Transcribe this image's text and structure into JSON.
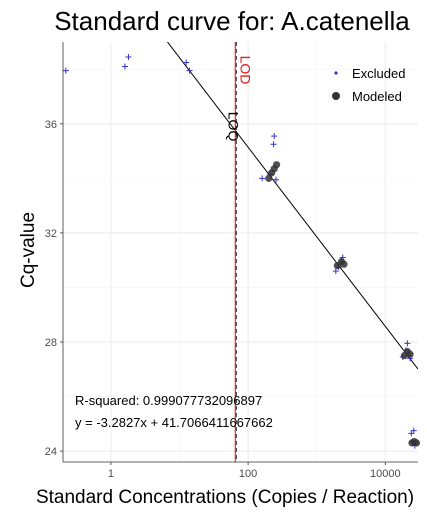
{
  "chart_data": {
    "type": "scatter",
    "title": "Standard curve for: A.catenella",
    "xlabel": "Standard Concentrations (Copies / Reaction)",
    "ylabel": "Cq-value",
    "x_scale": "log10",
    "xlim": [
      0.2,
      30000
    ],
    "ylim": [
      23.6,
      39.0
    ],
    "x_ticks": [
      {
        "value": 1,
        "label": "1"
      },
      {
        "value": 100,
        "label": "100"
      },
      {
        "value": 10000,
        "label": "10000"
      }
    ],
    "y_ticks": [
      {
        "value": 24,
        "label": "24"
      },
      {
        "value": 28,
        "label": "28"
      },
      {
        "value": 32,
        "label": "32"
      },
      {
        "value": 36,
        "label": "36"
      }
    ],
    "grid": true,
    "legend": {
      "position": "top-right",
      "entries": [
        {
          "label": "Excluded",
          "color": "#3333cc"
        },
        {
          "label": "Modeled",
          "color": "#333333"
        }
      ]
    },
    "series": [
      {
        "name": "Excluded",
        "marker": "plus",
        "color": "#3333cc",
        "points": [
          {
            "x": 0.22,
            "y": 37.95
          },
          {
            "x": 1.6,
            "y": 38.1
          },
          {
            "x": 1.8,
            "y": 38.45
          },
          {
            "x": 12.5,
            "y": 38.25
          },
          {
            "x": 14,
            "y": 37.95
          },
          {
            "x": 160,
            "y": 34.0
          },
          {
            "x": 210,
            "y": 34.15
          },
          {
            "x": 235,
            "y": 35.25
          },
          {
            "x": 240,
            "y": 35.55
          },
          {
            "x": 255,
            "y": 33.95
          },
          {
            "x": 1900,
            "y": 30.6
          },
          {
            "x": 2100,
            "y": 30.75
          },
          {
            "x": 2300,
            "y": 30.95
          },
          {
            "x": 2400,
            "y": 31.1
          },
          {
            "x": 18000,
            "y": 27.45
          },
          {
            "x": 20000,
            "y": 27.7
          },
          {
            "x": 21000,
            "y": 27.95
          },
          {
            "x": 22000,
            "y": 27.5
          },
          {
            "x": 23000,
            "y": 27.4
          },
          {
            "x": 24000,
            "y": 24.65
          },
          {
            "x": 25000,
            "y": 24.35
          },
          {
            "x": 26000,
            "y": 24.75
          },
          {
            "x": 27000,
            "y": 24.2
          },
          {
            "x": 28000,
            "y": 24.3
          }
        ]
      },
      {
        "name": "Modeled",
        "marker": "circle",
        "color": "#333333",
        "points": [
          {
            "x": 200,
            "y": 34.0
          },
          {
            "x": 220,
            "y": 34.2
          },
          {
            "x": 240,
            "y": 34.35
          },
          {
            "x": 260,
            "y": 34.5
          },
          {
            "x": 2000,
            "y": 30.8
          },
          {
            "x": 2300,
            "y": 30.95
          },
          {
            "x": 2500,
            "y": 30.85
          },
          {
            "x": 19000,
            "y": 27.5
          },
          {
            "x": 21000,
            "y": 27.65
          },
          {
            "x": 23000,
            "y": 27.55
          },
          {
            "x": 24500,
            "y": 24.3
          },
          {
            "x": 26500,
            "y": 24.35
          },
          {
            "x": 28500,
            "y": 24.3
          }
        ]
      }
    ],
    "regression": {
      "slope": -3.2827,
      "intercept": 41.7066411667662
    },
    "lod": {
      "x": 65,
      "label": "LOD",
      "color": "#e31a1c"
    },
    "loq": {
      "x": 65,
      "label": "LOQ"
    },
    "annotations": {
      "r_squared": "R-squared: 0.999077732096897",
      "equation": "y = -3.2827x + 41.7066411667662"
    }
  }
}
